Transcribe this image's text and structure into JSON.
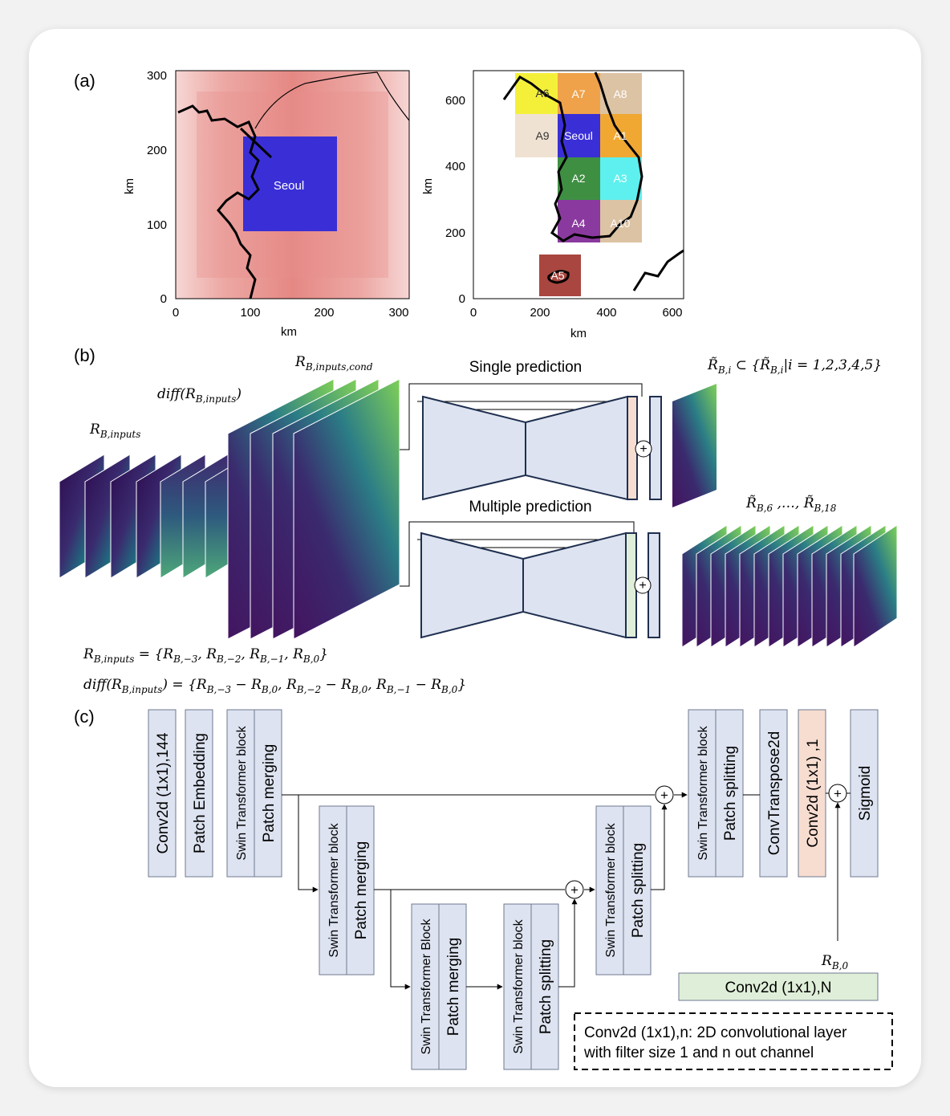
{
  "panel_labels": {
    "a": "(a)",
    "b": "(b)",
    "c": "(c)"
  },
  "map_left": {
    "axis_label_x": "km",
    "axis_label_y": "km",
    "x_ticks": [
      "0",
      "100",
      "200",
      "300"
    ],
    "y_ticks": [
      "0",
      "100",
      "200",
      "300"
    ],
    "region_label": "Seoul",
    "colors": {
      "domain": "#e8908c",
      "region": "#3a2fd6"
    }
  },
  "map_right": {
    "axis_label_x": "km",
    "axis_label_y": "km",
    "x_ticks": [
      "0",
      "200",
      "400",
      "600"
    ],
    "y_ticks": [
      "0",
      "200",
      "400",
      "600"
    ],
    "regions": [
      {
        "label": "A6",
        "color": "#f4f03a"
      },
      {
        "label": "A7",
        "color": "#f0a24a"
      },
      {
        "label": "A8",
        "color": "#dcc3a4"
      },
      {
        "label": "A9",
        "color": "#f0e2d2"
      },
      {
        "label": "Seoul",
        "color": "#3a2fd6"
      },
      {
        "label": "A1",
        "color": "#f0a833"
      },
      {
        "label": "A2",
        "color": "#3f8f43"
      },
      {
        "label": "A3",
        "color": "#5ef0ee"
      },
      {
        "label": "A4",
        "color": "#8a3a9e"
      },
      {
        "label": "A10",
        "color": "#dcc3a4"
      },
      {
        "label": "A5",
        "color": "#a8463f"
      }
    ]
  },
  "panel_b": {
    "label_inputs": "R",
    "label_inputs_sub": "B,inputs",
    "label_diff_pre": "diff(R",
    "label_diff_sub": "B,inputs",
    "label_diff_post": ")",
    "label_cond": "R",
    "label_cond_sub": "B,inputs,cond",
    "single_title": "Single prediction",
    "multiple_title": "Multiple prediction",
    "out_single_pre": "R̃",
    "out_single_sub": "B,i",
    "out_single_mid": " ⊂ {R̃",
    "out_single_sub2": "B,i",
    "out_single_post": "|i = 1,2,3,4,5}",
    "out_multi_pre": "R̃",
    "out_multi_sub": "B,6",
    "out_multi_mid": " ,…, R̃",
    "out_multi_sub2": "B,18",
    "plus_symbol": "+",
    "eq1": {
      "lhs": "R",
      "lhs_sub": "B,inputs",
      "rhs": " = {R",
      "s1": "B,−3",
      "t1": ", R",
      "s2": "B,−2",
      "t2": ", R",
      "s3": "B,−1",
      "t3": ", R",
      "s4": "B,0",
      "t4": "}"
    },
    "eq2": {
      "lhs": "diff(R",
      "lhs_sub": "B,inputs",
      "lhs_post": ") = {R",
      "s1": "B,−3",
      "t1": " − R",
      "s2": "B,0",
      "t2": ", R",
      "s3": "B,−2",
      "t3": " − R",
      "s4": "B,0",
      "t4": ", R",
      "s5": "B,−1",
      "t5": " − R",
      "s6": "B,0",
      "t6": "}"
    },
    "colors": {
      "unet": "#dde3f0",
      "single_out": "#f7ddd0",
      "multi_out": "#dfeed8"
    }
  },
  "panel_c": {
    "blocks": {
      "conv_in": "Conv2d (1x1),144",
      "patch_embed": "Patch Embedding",
      "swin1": "Swin Transformer block",
      "merge1": "Patch merging",
      "swin2": "Swin Transformer block",
      "merge2": "Patch merging",
      "swin3": "Swin Transformer Block",
      "merge3": "Patch merging",
      "swin4": "Swin Transformer block",
      "split4": "Patch splitting",
      "swin5": "Swin Transformer block",
      "split5": "Patch splitting",
      "swin6": "Swin Transformer block",
      "split6": "Patch splitting",
      "convT": "ConvTranspose2d",
      "conv_out": "Conv2d (1x1) ,1",
      "sigmoid": "Sigmoid",
      "conv_n": "Conv2d (1x1),N"
    },
    "r_label": "R",
    "r_sub": "B,0",
    "plus_symbol": "+",
    "legend_line1": "Conv2d (1x1),n: 2D convolutional layer",
    "legend_line2": "with filter size 1 and n out channel",
    "colors": {
      "block": "#dde3f0",
      "conv_out": "#f7ddd0",
      "conv_n": "#dfeed8"
    }
  }
}
